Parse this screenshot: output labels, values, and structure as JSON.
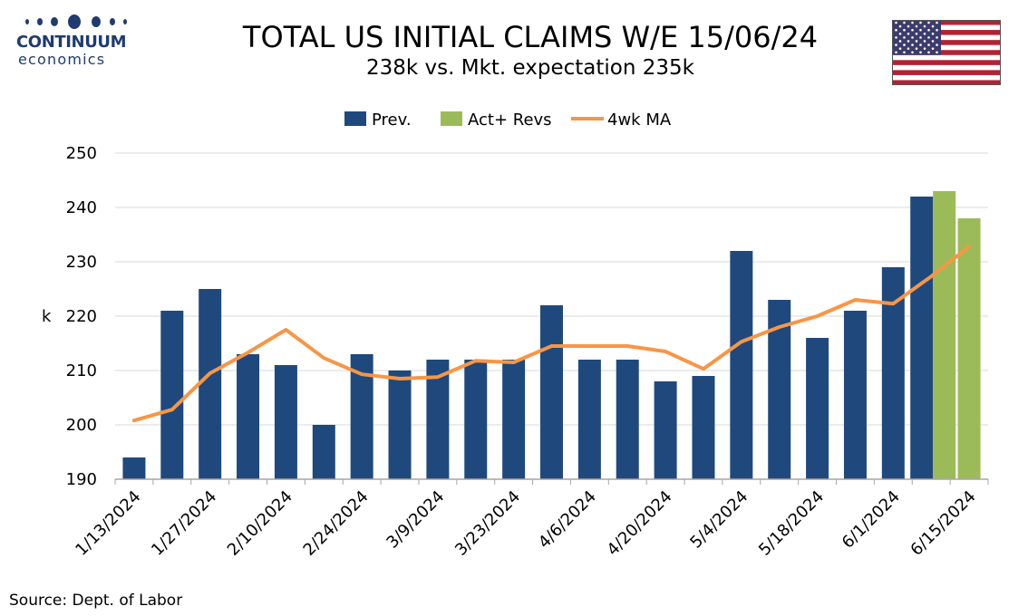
{
  "header": {
    "logo_line1": "CONTINUUM",
    "logo_line2": "economics",
    "title": "TOTAL US INITIAL CLAIMS W/E 15/06/24",
    "subtitle": "238k vs. Mkt. expectation 235k"
  },
  "footer": {
    "source": "Source: Dept. of Labor"
  },
  "colors": {
    "prev": "#1f497d",
    "act": "#9bbb59",
    "ma": "#f79646",
    "logo": "#1f3b6f",
    "flag_red": "#b22234",
    "flag_blue": "#3c3b6e"
  },
  "chart_data": {
    "type": "bar",
    "title": "TOTAL US INITIAL CLAIMS W/E 15/06/24",
    "subtitle": "238k vs. Mkt. expectation 235k",
    "ylabel": "k",
    "ylim": [
      190,
      250
    ],
    "yticks": [
      190,
      200,
      210,
      220,
      230,
      240,
      250
    ],
    "grid": true,
    "legend_position": "top-center",
    "categories": [
      "1/13/2024",
      "1/20/2024",
      "1/27/2024",
      "2/3/2024",
      "2/10/2024",
      "2/17/2024",
      "2/24/2024",
      "3/2/2024",
      "3/9/2024",
      "3/16/2024",
      "3/23/2024",
      "3/30/2024",
      "4/6/2024",
      "4/13/2024",
      "4/20/2024",
      "4/27/2024",
      "5/4/2024",
      "5/11/2024",
      "5/18/2024",
      "5/25/2024",
      "6/1/2024",
      "6/8/2024",
      "6/15/2024"
    ],
    "tick_labels": [
      "1/13/2024",
      "1/27/2024",
      "2/10/2024",
      "2/24/2024",
      "3/9/2024",
      "3/23/2024",
      "4/6/2024",
      "4/20/2024",
      "5/4/2024",
      "5/18/2024",
      "6/1/2024",
      "6/15/2024"
    ],
    "series": [
      {
        "name": "Prev.",
        "kind": "bar",
        "values": [
          194,
          221,
          225,
          213,
          211,
          200,
          213,
          210,
          212,
          212,
          212,
          222,
          212,
          212,
          208,
          209,
          232,
          223,
          216,
          221,
          229,
          242,
          null
        ]
      },
      {
        "name": "Act+ Revs",
        "kind": "bar",
        "values": [
          null,
          null,
          null,
          null,
          null,
          null,
          null,
          null,
          null,
          null,
          null,
          null,
          null,
          null,
          null,
          null,
          null,
          null,
          null,
          null,
          null,
          243,
          238
        ]
      },
      {
        "name": "4wk MA",
        "kind": "line",
        "values": [
          200.8,
          202.8,
          209.5,
          213.3,
          217.5,
          212.3,
          209.3,
          208.5,
          208.8,
          211.8,
          211.5,
          214.5,
          214.5,
          214.5,
          213.5,
          210.3,
          215.3,
          218,
          220,
          223,
          222.3,
          227.3,
          232.8
        ]
      }
    ]
  }
}
